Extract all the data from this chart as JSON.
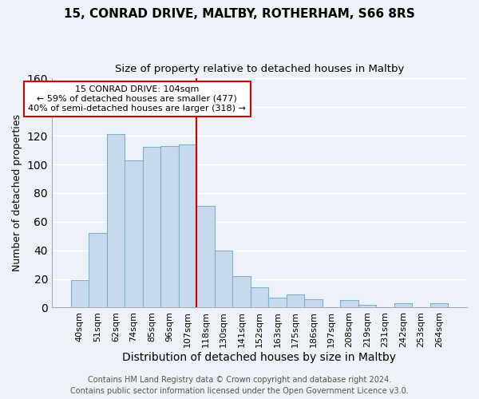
{
  "title1": "15, CONRAD DRIVE, MALTBY, ROTHERHAM, S66 8RS",
  "title2": "Size of property relative to detached houses in Maltby",
  "xlabel": "Distribution of detached houses by size in Maltby",
  "ylabel": "Number of detached properties",
  "bar_labels": [
    "40sqm",
    "51sqm",
    "62sqm",
    "74sqm",
    "85sqm",
    "96sqm",
    "107sqm",
    "118sqm",
    "130sqm",
    "141sqm",
    "152sqm",
    "163sqm",
    "175sqm",
    "186sqm",
    "197sqm",
    "208sqm",
    "219sqm",
    "231sqm",
    "242sqm",
    "253sqm",
    "264sqm"
  ],
  "bar_values": [
    19,
    52,
    121,
    103,
    112,
    113,
    114,
    71,
    40,
    22,
    14,
    7,
    9,
    6,
    0,
    5,
    2,
    0,
    3,
    0,
    3
  ],
  "bar_color": "#c8d9ee",
  "bar_edge_color": "#7bafd4",
  "vline_color": "#cc0000",
  "vline_x_index": 6,
  "ylim": [
    0,
    160
  ],
  "annotation_title": "15 CONRAD DRIVE: 104sqm",
  "annotation_line1": "← 59% of detached houses are smaller (477)",
  "annotation_line2": "40% of semi-detached houses are larger (318) →",
  "annotation_box_color": "#ffffff",
  "annotation_box_edge": "#cc0000",
  "footer1": "Contains HM Land Registry data © Crown copyright and database right 2024.",
  "footer2": "Contains public sector information licensed under the Open Government Licence v3.0.",
  "background_color": "#edf2f9",
  "grid_color": "#ffffff",
  "title1_fontsize": 11,
  "title2_fontsize": 9.5,
  "xlabel_fontsize": 10,
  "ylabel_fontsize": 9,
  "tick_fontsize": 8,
  "footer_fontsize": 7,
  "ann_fontsize": 8
}
